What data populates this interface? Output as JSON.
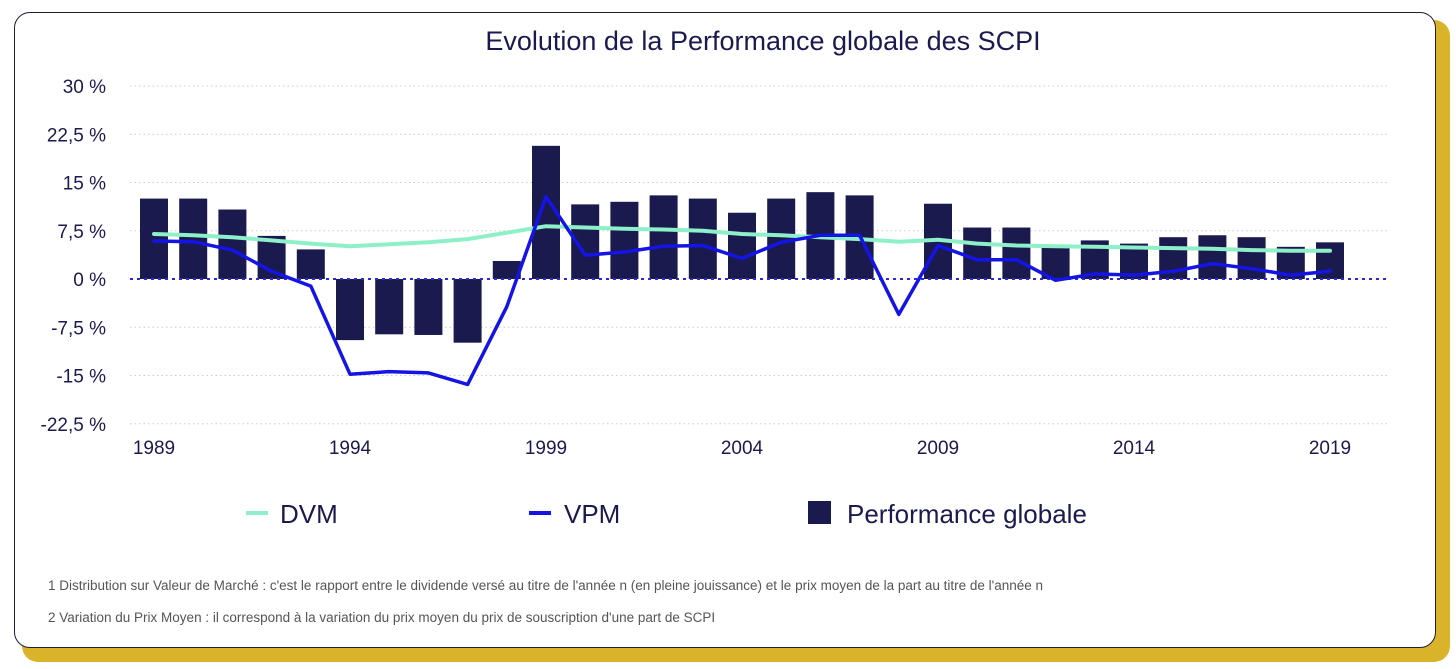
{
  "chart_data": {
    "type": "bar",
    "title": "Evolution de la Performance globale des SCPI",
    "x": [
      1989,
      1990,
      1991,
      1992,
      1993,
      1994,
      1995,
      1996,
      1997,
      1998,
      1999,
      2000,
      2001,
      2002,
      2003,
      2004,
      2005,
      2006,
      2007,
      2008,
      2009,
      2010,
      2011,
      2012,
      2013,
      2014,
      2015,
      2016,
      2017,
      2018,
      2019
    ],
    "x_tick_labels": [
      "1989",
      "1994",
      "1999",
      "2004",
      "2009",
      "2014",
      "2019"
    ],
    "x_tick_values": [
      1989,
      1994,
      1999,
      2004,
      2009,
      2014,
      2019
    ],
    "y_tick_labels": [
      "30 %",
      "22,5 %",
      "15 %",
      "7,5 %",
      "0 %",
      "-7,5 %",
      "-15 %",
      "-22,5 %"
    ],
    "y_tick_values": [
      30,
      22.5,
      15,
      7.5,
      0,
      -7.5,
      -15,
      -22.5
    ],
    "ylim": [
      -22.5,
      30
    ],
    "grid": true,
    "legend_position": "bottom",
    "series": [
      {
        "name": "Performance globale",
        "kind": "bar",
        "color": "#1a1a4e",
        "values": [
          12.5,
          12.5,
          10.8,
          6.7,
          4.6,
          -9.5,
          -8.6,
          -8.7,
          -9.9,
          2.8,
          20.7,
          11.6,
          12.0,
          13.0,
          12.5,
          10.3,
          12.5,
          13.5,
          13.0,
          null,
          11.7,
          8.0,
          8.0,
          5.0,
          6.0,
          5.5,
          6.5,
          6.8,
          6.5,
          5.0,
          5.7
        ]
      },
      {
        "name": "DVM",
        "kind": "line",
        "color": "#8ef0c8",
        "values": [
          7.0,
          6.8,
          6.5,
          6.0,
          5.5,
          5.1,
          5.4,
          5.7,
          6.2,
          7.2,
          8.2,
          8.0,
          7.8,
          7.7,
          7.5,
          7.0,
          6.8,
          6.5,
          6.2,
          5.8,
          6.1,
          5.5,
          5.2,
          5.1,
          5.0,
          4.9,
          4.8,
          4.7,
          4.5,
          4.4,
          4.4
        ]
      },
      {
        "name": "VPM",
        "kind": "line",
        "color": "#1414e6",
        "values": [
          5.9,
          5.8,
          4.5,
          1.2,
          -1.1,
          -14.8,
          -14.4,
          -14.6,
          -16.4,
          -4.3,
          12.8,
          3.7,
          4.2,
          5.1,
          5.2,
          3.2,
          5.7,
          6.8,
          6.8,
          -5.5,
          5.2,
          3.0,
          3.0,
          -0.2,
          0.8,
          0.6,
          1.2,
          2.4,
          1.6,
          0.6,
          1.2
        ]
      }
    ]
  },
  "legend": {
    "dvm": "DVM",
    "vpm": "VPM",
    "performance": "Performance globale"
  },
  "footnotes": {
    "note1": "1 Distribution sur Valeur de Marché : c'est le rapport entre le dividende versé au titre de l'année n (en pleine jouissance) et le prix moyen de la part au titre de l'année n",
    "note2": "2 Variation du Prix Moyen : il correspond à la variation du prix moyen du prix de souscription d'une part de SCPI"
  },
  "colors": {
    "accent": "#d9b42a",
    "axis_text": "#1a1a4e",
    "zero_line": "#2a2ad8",
    "grid": "#cccccc"
  }
}
